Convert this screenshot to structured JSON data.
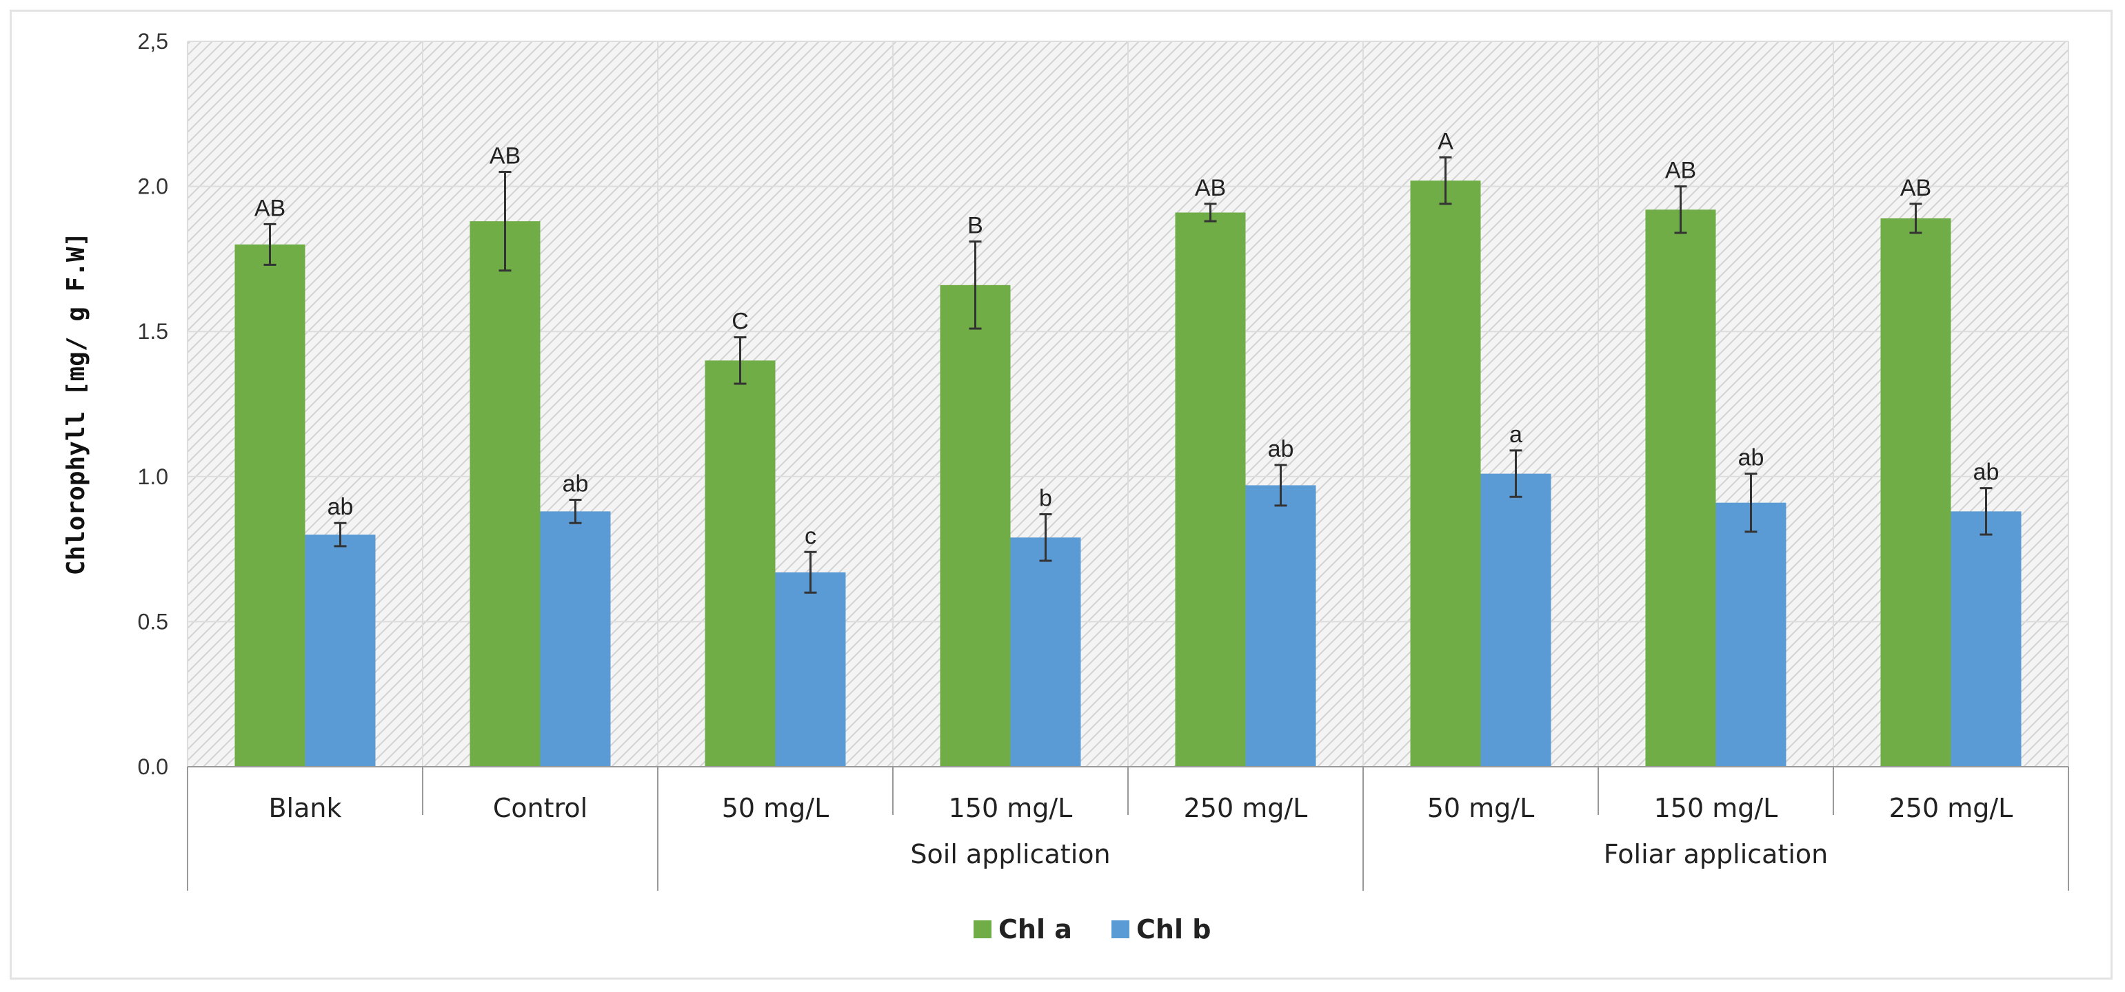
{
  "chart_data": {
    "type": "bar",
    "title": "",
    "xlabel": "",
    "ylabel": "Chlorophyll [mg/ g F.W]",
    "ylim": [
      0,
      2.5
    ],
    "yticks": [
      "0.0",
      "0.5",
      "1.0",
      "1.5",
      "2.0",
      "2,5"
    ],
    "categories": [
      "Blank",
      "Control",
      "50 mg/L",
      "150 mg/L",
      "250 mg/L",
      "50 mg/L",
      "150 mg/L",
      "250 mg/L"
    ],
    "groups": [
      {
        "label": "Soil application",
        "start": 2,
        "end": 4
      },
      {
        "label": "Foliar application",
        "start": 5,
        "end": 7
      }
    ],
    "series": [
      {
        "name": "Chl a",
        "color": "#70ad47",
        "values": [
          1.8,
          1.88,
          1.4,
          1.66,
          1.91,
          2.02,
          1.92,
          1.89
        ],
        "errors": [
          0.07,
          0.17,
          0.08,
          0.15,
          0.03,
          0.08,
          0.08,
          0.05
        ],
        "labels": [
          "AB",
          "AB",
          "C",
          "B",
          "AB",
          "A",
          "AB",
          "AB"
        ]
      },
      {
        "name": "Chl b",
        "color": "#5b9bd5",
        "values": [
          0.8,
          0.88,
          0.67,
          0.79,
          0.97,
          1.01,
          0.91,
          0.88
        ],
        "errors": [
          0.04,
          0.04,
          0.07,
          0.08,
          0.07,
          0.08,
          0.1,
          0.08
        ],
        "labels": [
          "ab",
          "ab",
          "c",
          "b",
          "ab",
          "a",
          "ab",
          "ab"
        ]
      }
    ],
    "legend_position": "bottom",
    "grid": true
  }
}
